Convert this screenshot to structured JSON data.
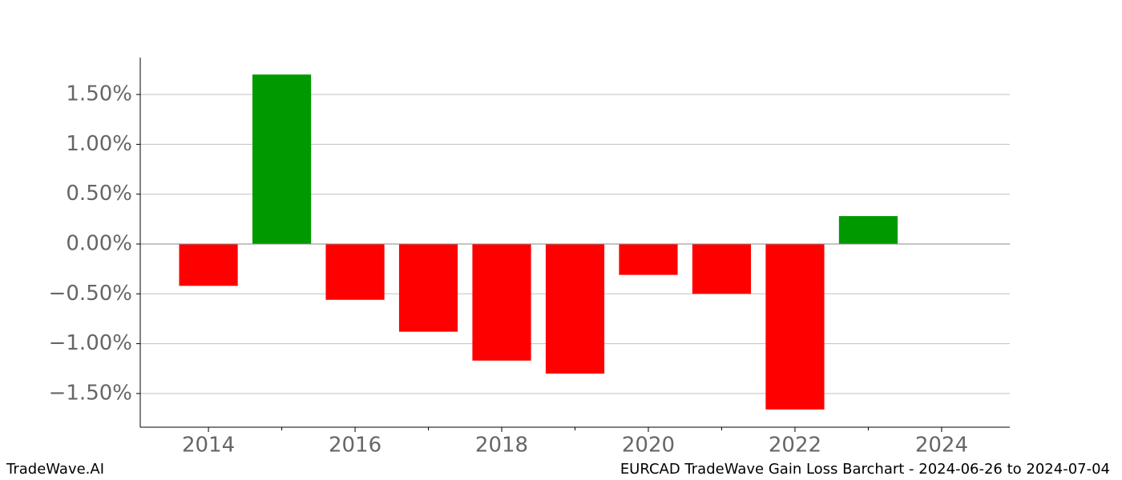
{
  "chart_data": {
    "type": "bar",
    "x": [
      2014,
      2015,
      2016,
      2017,
      2018,
      2019,
      2020,
      2021,
      2022,
      2023
    ],
    "values": [
      -0.42,
      1.7,
      -0.56,
      -0.88,
      -1.17,
      -1.3,
      -0.31,
      -0.5,
      -1.66,
      0.28
    ],
    "positive_color": "#009900",
    "negative_color": "#ff0000",
    "xlim": [
      2013.07,
      2024.93
    ],
    "xticks": [
      2014,
      2016,
      2018,
      2020,
      2022,
      2024
    ],
    "xminor_ticks": [
      2015,
      2017,
      2019,
      2021,
      2023
    ],
    "ylim": [
      -1.838,
      1.87
    ],
    "yticks": [
      {
        "value": -1.5,
        "label": "−1.50%"
      },
      {
        "value": -1.0,
        "label": "−1.00%"
      },
      {
        "value": -0.5,
        "label": "−0.50%"
      },
      {
        "value": 0,
        "label": "0.00%"
      },
      {
        "value": 0.5,
        "label": "0.50%"
      },
      {
        "value": 1.0,
        "label": "1.00%"
      },
      {
        "value": 1.5,
        "label": "1.50%"
      }
    ],
    "grid": true,
    "footer_left": "TradeWave.AI",
    "footer_right": "EURCAD TradeWave Gain Loss Barchart - 2024-06-26 to 2024-07-04"
  }
}
